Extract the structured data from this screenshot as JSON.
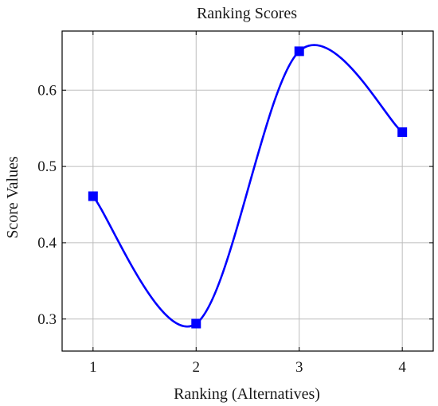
{
  "chart_data": {
    "type": "line",
    "title": "Ranking Scores",
    "xlabel": "Ranking (Alternatives)",
    "ylabel": "Score Values",
    "x": [
      1,
      2,
      3,
      4
    ],
    "x_ticks": [
      "1",
      "2",
      "3",
      "4"
    ],
    "y_ticks": [
      "0.3",
      "0.4",
      "0.5",
      "0.6"
    ],
    "y_tick_values": [
      0.3,
      0.4,
      0.5,
      0.6
    ],
    "xlim": [
      0.7,
      4.3
    ],
    "ylim": [
      0.258,
      0.6775
    ],
    "grid": true,
    "smooth": true,
    "marker": "square",
    "series": [
      {
        "values": [
          0.461,
          0.294,
          0.651,
          0.545
        ],
        "color": "#0000ff"
      }
    ]
  }
}
